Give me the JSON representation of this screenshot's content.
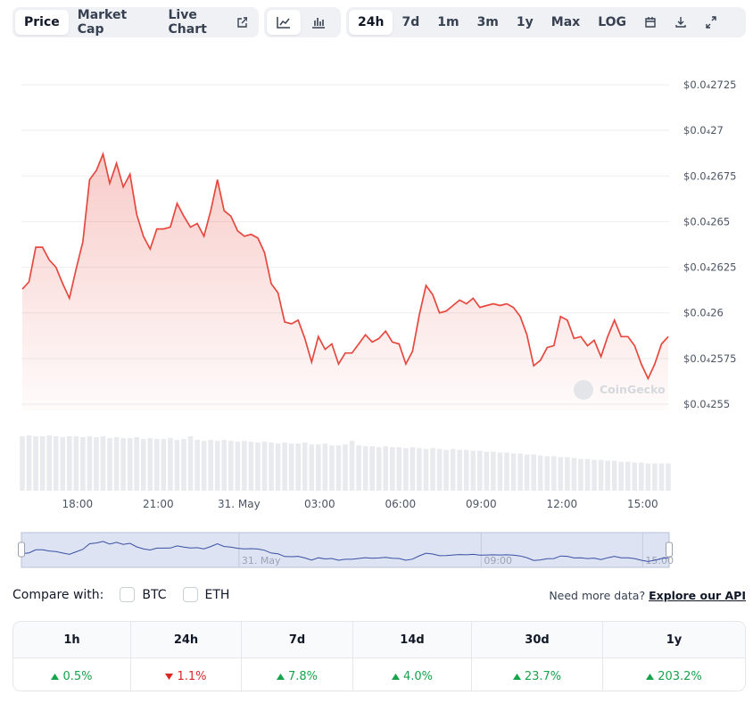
{
  "toolbar": {
    "tabs": [
      "Price",
      "Market Cap",
      "Live Chart"
    ],
    "active_tab": 0,
    "ranges": [
      "24h",
      "7d",
      "1m",
      "3m",
      "1y",
      "Max",
      "LOG"
    ],
    "active_range": 0
  },
  "chart_data": {
    "type": "line",
    "color": "#e5483e",
    "navigator_color": "#3a4fa3",
    "watermark": "CoinGecko",
    "grid": true,
    "x": [
      15.95,
      16.2,
      16.45,
      16.7,
      16.95,
      17.2,
      17.45,
      17.7,
      17.95,
      18.2,
      18.45,
      18.7,
      18.95,
      19.2,
      19.45,
      19.7,
      19.95,
      20.2,
      20.45,
      20.7,
      20.95,
      21.2,
      21.45,
      21.7,
      21.95,
      22.2,
      22.45,
      22.7,
      22.95,
      23.2,
      23.45,
      23.7,
      23.95,
      24.2,
      24.45,
      24.7,
      24.95,
      25.2,
      25.45,
      25.7,
      25.95,
      26.2,
      26.45,
      26.7,
      26.95,
      27.2,
      27.45,
      27.7,
      27.95,
      28.2,
      28.45,
      28.7,
      28.95,
      29.2,
      29.45,
      29.7,
      29.95,
      30.2,
      30.45,
      30.7,
      30.95,
      31.2,
      31.45,
      31.7,
      31.95,
      32.2,
      32.45,
      32.7,
      32.95,
      33.2,
      33.45,
      33.7,
      33.95,
      34.2,
      34.45,
      34.7,
      34.95,
      35.2,
      35.45,
      35.7,
      35.95,
      36.2,
      36.45,
      36.7,
      36.95,
      37.2,
      37.45,
      37.7,
      37.95,
      38.2,
      38.45,
      38.7,
      38.95,
      39.2,
      39.45,
      39.7,
      39.95
    ],
    "values": [
      2.613e-05,
      2.617e-05,
      2.636e-05,
      2.636e-05,
      2.629e-05,
      2.625e-05,
      2.616e-05,
      2.608e-05,
      2.624e-05,
      2.639e-05,
      2.673e-05,
      2.678e-05,
      2.687e-05,
      2.671e-05,
      2.682e-05,
      2.669e-05,
      2.676e-05,
      2.654e-05,
      2.642e-05,
      2.635e-05,
      2.646e-05,
      2.646e-05,
      2.647e-05,
      2.66e-05,
      2.653e-05,
      2.647e-05,
      2.649e-05,
      2.642e-05,
      2.656e-05,
      2.673e-05,
      2.656e-05,
      2.653e-05,
      2.645e-05,
      2.642e-05,
      2.643e-05,
      2.641e-05,
      2.633e-05,
      2.616e-05,
      2.611e-05,
      2.595e-05,
      2.594e-05,
      2.596e-05,
      2.586e-05,
      2.573e-05,
      2.587e-05,
      2.58e-05,
      2.583e-05,
      2.572e-05,
      2.578e-05,
      2.578e-05,
      2.583e-05,
      2.588e-05,
      2.584e-05,
      2.586e-05,
      2.59e-05,
      2.584e-05,
      2.583e-05,
      2.572e-05,
      2.579e-05,
      2.599e-05,
      2.615e-05,
      2.61e-05,
      2.6e-05,
      2.601e-05,
      2.604e-05,
      2.607e-05,
      2.605e-05,
      2.608e-05,
      2.603e-05,
      2.604e-05,
      2.605e-05,
      2.604e-05,
      2.605e-05,
      2.603e-05,
      2.598e-05,
      2.588e-05,
      2.571e-05,
      2.574e-05,
      2.581e-05,
      2.582e-05,
      2.598e-05,
      2.596e-05,
      2.586e-05,
      2.587e-05,
      2.582e-05,
      2.585e-05,
      2.576e-05,
      2.587e-05,
      2.596e-05,
      2.587e-05,
      2.587e-05,
      2.582e-05,
      2.572e-05,
      2.564e-05,
      2.572e-05,
      2.583e-05,
      2.587e-05
    ],
    "volume": [
      60,
      61,
      60,
      60,
      61,
      60,
      59,
      60,
      60,
      59,
      60,
      59,
      60,
      58,
      59,
      58,
      58,
      59,
      57,
      58,
      57,
      57,
      58,
      56,
      57,
      60,
      56,
      55,
      56,
      55,
      56,
      55,
      54,
      55,
      54,
      53,
      54,
      53,
      52,
      53,
      52,
      52,
      53,
      51,
      51,
      52,
      50,
      50,
      51,
      55,
      50,
      49,
      49,
      48,
      49,
      48,
      48,
      47,
      48,
      47,
      46,
      47,
      46,
      45,
      46,
      45,
      45,
      44,
      44,
      43,
      43,
      42,
      42,
      41,
      41,
      40,
      40,
      39,
      38,
      38,
      37,
      37,
      36,
      35,
      35,
      34,
      34,
      33,
      33,
      32,
      32,
      31,
      31,
      30,
      30,
      30,
      30
    ],
    "xlim": [
      15.95,
      39.95
    ],
    "xticks": [
      {
        "value": 18,
        "label": "18:00"
      },
      {
        "value": 21,
        "label": "21:00"
      },
      {
        "value": 24,
        "label": "31. May"
      },
      {
        "value": 27,
        "label": "03:00"
      },
      {
        "value": 30,
        "label": "06:00"
      },
      {
        "value": 33,
        "label": "09:00"
      },
      {
        "value": 36,
        "label": "12:00"
      },
      {
        "value": 39,
        "label": "15:00"
      }
    ],
    "ylim": [
      2.55e-05,
      2.725e-05
    ],
    "yticks": [
      {
        "value": 2.725e-05,
        "label": "$0.0₄2725"
      },
      {
        "value": 2.7e-05,
        "label": "$0.0₄27"
      },
      {
        "value": 2.675e-05,
        "label": "$0.0₄2675"
      },
      {
        "value": 2.65e-05,
        "label": "$0.0₄265"
      },
      {
        "value": 2.625e-05,
        "label": "$0.0₄2625"
      },
      {
        "value": 2.6e-05,
        "label": "$0.0₄26"
      },
      {
        "value": 2.575e-05,
        "label": "$0.0₄2575"
      },
      {
        "value": 2.55e-05,
        "label": "$0.0₄255"
      }
    ]
  },
  "compare": {
    "label": "Compare with:",
    "options": [
      "BTC",
      "ETH"
    ]
  },
  "api": {
    "prompt": "Need more data?",
    "link": "Explore our API"
  },
  "changes": [
    {
      "period": "1h",
      "value": "0.5%",
      "trend": "up"
    },
    {
      "period": "24h",
      "value": "1.1%",
      "trend": "down"
    },
    {
      "period": "7d",
      "value": "7.8%",
      "trend": "up"
    },
    {
      "period": "14d",
      "value": "4.0%",
      "trend": "up"
    },
    {
      "period": "30d",
      "value": "23.7%",
      "trend": "up"
    },
    {
      "period": "1y",
      "value": "203.2%",
      "trend": "up"
    }
  ]
}
